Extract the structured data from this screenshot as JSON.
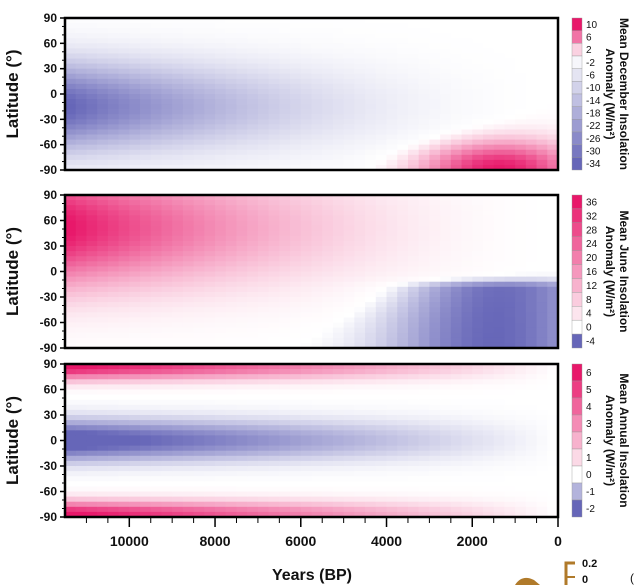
{
  "chart_data": [
    {
      "type": "heatmap",
      "title": "",
      "xlabel": "Years (BP)",
      "ylabel": "Latitude (°)",
      "xlim": [
        11500,
        0
      ],
      "ylim": [
        -90,
        90
      ],
      "y_ticks": [
        "90",
        "60",
        "30",
        "0",
        "-30",
        "-60",
        "-90"
      ],
      "colorbar_label": "Mean December Insolation Anomaly (W/m²)",
      "colorbar_ticks": [
        "10",
        "6",
        "2",
        "-2",
        "-6",
        "-10",
        "-14",
        "-18",
        "-22",
        "-26",
        "-30",
        "-34"
      ],
      "colorbar_range": [
        -34,
        10
      ],
      "features": [
        {
          "kind": "minimum",
          "value": -34,
          "lat": -15,
          "years_bp": 11500
        },
        {
          "kind": "positive_region",
          "max": 10,
          "lat_range": [
            -90,
            -40
          ],
          "years_bp_range": [
            4500,
            0
          ]
        }
      ]
    },
    {
      "type": "heatmap",
      "title": "",
      "xlabel": "Years (BP)",
      "ylabel": "Latitude (°)",
      "xlim": [
        11500,
        0
      ],
      "ylim": [
        -90,
        90
      ],
      "y_ticks": [
        "90",
        "60",
        "30",
        "0",
        "-30",
        "-60",
        "-90"
      ],
      "colorbar_label": "Mean June Insolation Anomaly (W/m²)",
      "colorbar_ticks": [
        "36",
        "32",
        "28",
        "24",
        "20",
        "16",
        "12",
        "8",
        "4",
        "0",
        "-4"
      ],
      "colorbar_range": [
        -4,
        36
      ],
      "features": [
        {
          "kind": "maximum",
          "value": 36,
          "lat": 55,
          "years_bp": 11500
        },
        {
          "kind": "negative_region",
          "min": -4,
          "lat_range": [
            -90,
            -30
          ],
          "years_bp_range": [
            5500,
            0
          ]
        }
      ]
    },
    {
      "type": "heatmap",
      "title": "",
      "xlabel": "Years (BP)",
      "ylabel": "Latitude (°)",
      "xlim": [
        11500,
        0
      ],
      "ylim": [
        -90,
        90
      ],
      "y_ticks": [
        "90",
        "60",
        "30",
        "0",
        "-30",
        "-60",
        "-90"
      ],
      "x_ticks": [
        "10000",
        "8000",
        "6000",
        "4000",
        "2000",
        "0"
      ],
      "colorbar_label": "Mean Annual Insolation Anomaly (W/m²)",
      "colorbar_ticks": [
        "6",
        "5",
        "4",
        "3",
        "2",
        "1",
        "0",
        "-1",
        "-2"
      ],
      "colorbar_range": [
        -2,
        6
      ],
      "features": [
        {
          "kind": "maximum",
          "value": 6,
          "lat": 80,
          "years_bp": 11500
        },
        {
          "kind": "maximum",
          "value": 6,
          "lat": -80,
          "years_bp": 11500
        },
        {
          "kind": "minimum",
          "value": -2,
          "lat": 0,
          "years_bp": 11500
        }
      ]
    }
  ],
  "extra_axis": {
    "tick_labels": [
      "0.2",
      "0"
    ]
  }
}
